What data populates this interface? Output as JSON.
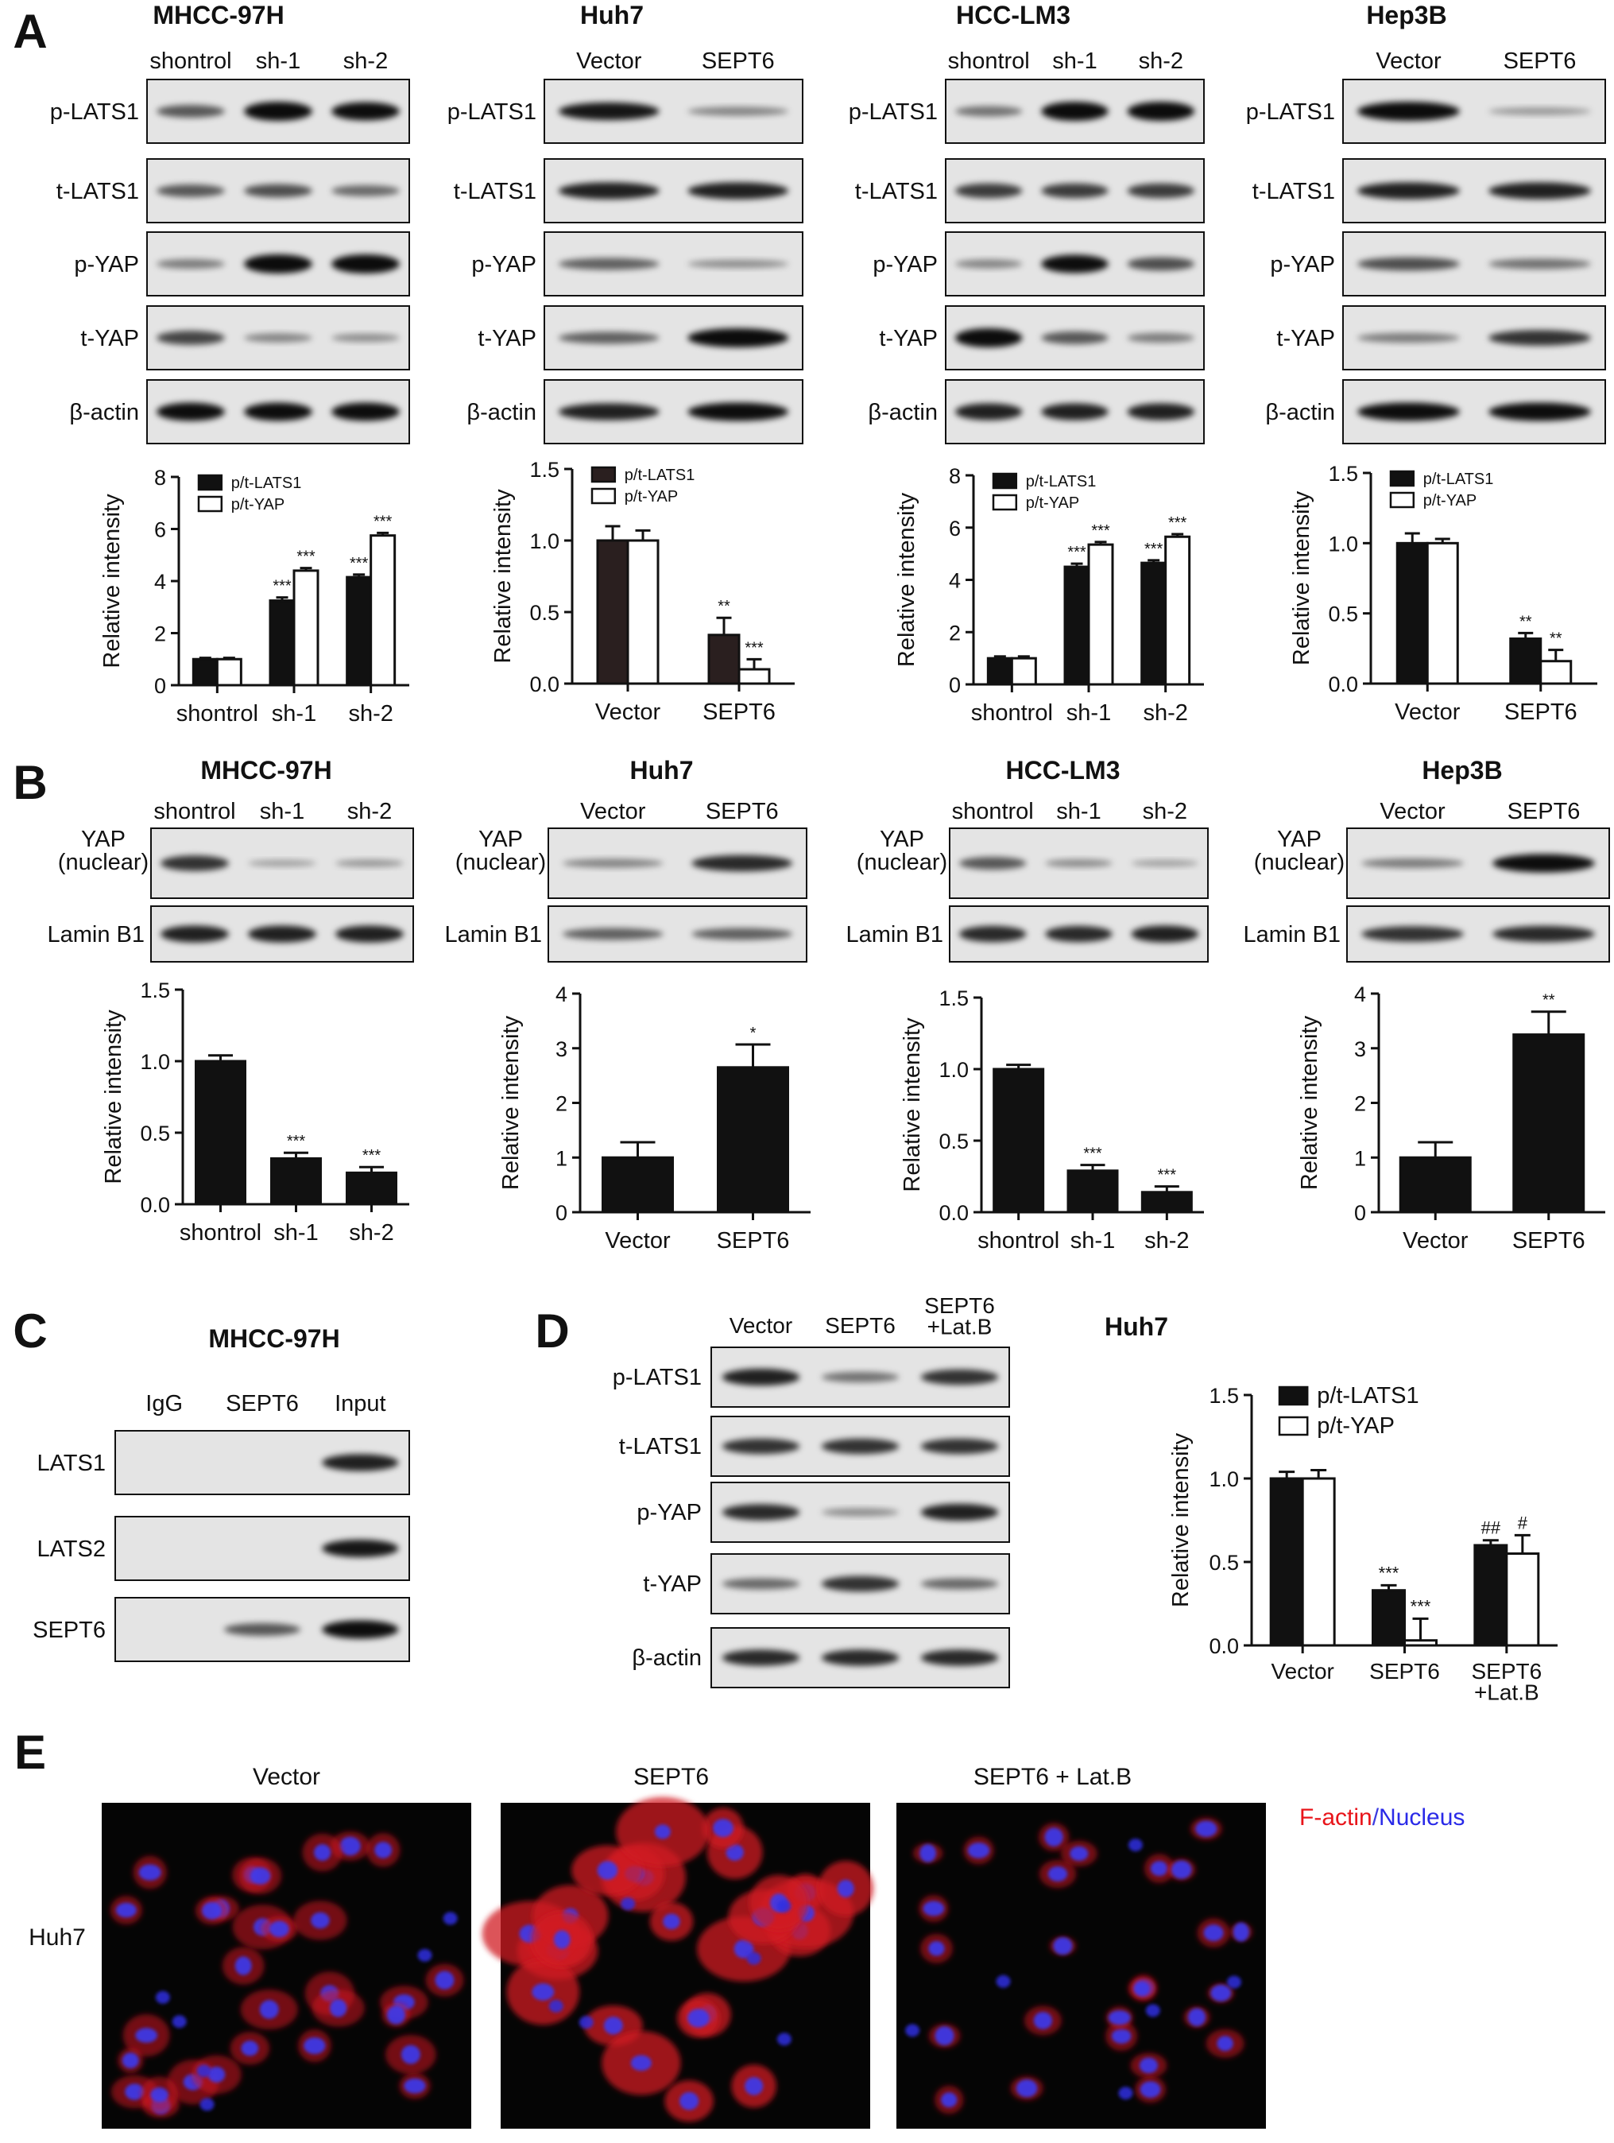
{
  "panel_letters": [
    "A",
    "B",
    "C",
    "D",
    "E"
  ],
  "panel_a": {
    "groups": [
      {
        "cell_line": "MHCC-97H",
        "lanes": [
          "shontrol",
          "sh-1",
          "sh-2"
        ],
        "rows": [
          "p-LATS1",
          "t-LATS1",
          "p-YAP",
          "t-YAP",
          "β-actin"
        ]
      },
      {
        "cell_line": "Huh7",
        "lanes": [
          "Vector",
          "SEPT6"
        ],
        "rows": [
          "p-LATS1",
          "t-LATS1",
          "p-YAP",
          "t-YAP",
          "β-actin"
        ]
      },
      {
        "cell_line": "HCC-LM3",
        "lanes": [
          "shontrol",
          "sh-1",
          "sh-2"
        ],
        "rows": [
          "p-LATS1",
          "t-LATS1",
          "p-YAP",
          "t-YAP",
          "β-actin"
        ]
      },
      {
        "cell_line": "Hep3B",
        "lanes": [
          "Vector",
          "SEPT6"
        ],
        "rows": [
          "p-LATS1",
          "t-LATS1",
          "p-YAP",
          "t-YAP",
          "β-actin"
        ]
      }
    ]
  },
  "panel_b": {
    "groups": [
      {
        "cell_line": "MHCC-97H",
        "lanes": [
          "shontrol",
          "sh-1",
          "sh-2"
        ],
        "rows": [
          "YAP\n(nuclear)",
          "Lamin B1"
        ]
      },
      {
        "cell_line": "Huh7",
        "lanes": [
          "Vector",
          "SEPT6"
        ],
        "rows": [
          "YAP\n(nuclear)",
          "Lamin B1"
        ]
      },
      {
        "cell_line": "HCC-LM3",
        "lanes": [
          "shontrol",
          "sh-1",
          "sh-2"
        ],
        "rows": [
          "YAP\n(nuclear)",
          "Lamin B1"
        ]
      },
      {
        "cell_line": "Hep3B",
        "lanes": [
          "Vector",
          "SEPT6"
        ],
        "rows": [
          "YAP\n(nuclear)",
          "Lamin B1"
        ]
      }
    ]
  },
  "panel_c": {
    "title": "MHCC-97H",
    "lanes": [
      "IgG",
      "SEPT6",
      "Input"
    ],
    "rows": [
      "LATS1",
      "LATS2",
      "SEPT6"
    ]
  },
  "panel_d": {
    "title": "Huh7",
    "lanes": [
      "Vector",
      "SEPT6",
      "SEPT6\n+Lat.B"
    ],
    "rows": [
      "p-LATS1",
      "t-LATS1",
      "p-YAP",
      "t-YAP",
      "β-actin"
    ]
  },
  "panel_e": {
    "row_label": "Huh7",
    "columns": [
      "Vector",
      "SEPT6",
      "SEPT6 + Lat.B"
    ],
    "legend": [
      {
        "text": "F-actin",
        "color": "#e8141a"
      },
      {
        "text": "/",
        "color": "#3a3ae0"
      },
      {
        "text": "Nucleus",
        "color": "#2a2ae8"
      }
    ]
  },
  "chart_data": [
    {
      "id": "A1",
      "type": "bar",
      "categories": [
        "shontrol",
        "sh-1",
        "sh-2"
      ],
      "ylabel": "Relative intensity",
      "ylim": [
        0,
        8
      ],
      "yticks": [
        0,
        2,
        4,
        6,
        8
      ],
      "legend": "top-left",
      "series": [
        {
          "name": "p/t-LATS1",
          "fill": "#111111",
          "values": [
            1.0,
            3.25,
            4.15
          ],
          "errors": [
            0.05,
            0.12,
            0.1
          ],
          "sig": [
            "",
            "***",
            "***"
          ]
        },
        {
          "name": "p/t-YAP",
          "fill": "#ffffff",
          "values": [
            1.0,
            4.4,
            5.75
          ],
          "errors": [
            0.05,
            0.1,
            0.1
          ],
          "sig": [
            "",
            "***",
            "***"
          ]
        }
      ]
    },
    {
      "id": "A2",
      "type": "bar",
      "categories": [
        "Vector",
        "SEPT6"
      ],
      "ylabel": "Relative intensity",
      "ylim": [
        0,
        1.5
      ],
      "yticks": [
        "0.0",
        "0.5",
        "1.0",
        "1.5"
      ],
      "legend": "top-left",
      "series": [
        {
          "name": "p/t-LATS1",
          "fill": "#2a1f1f",
          "values": [
            1.0,
            0.34
          ],
          "errors": [
            0.1,
            0.12
          ],
          "sig": [
            "",
            "**"
          ]
        },
        {
          "name": "p/t-YAP",
          "fill": "#ffffff",
          "values": [
            1.0,
            0.1
          ],
          "errors": [
            0.07,
            0.07
          ],
          "sig": [
            "",
            "***"
          ]
        }
      ]
    },
    {
      "id": "A3",
      "type": "bar",
      "categories": [
        "shontrol",
        "sh-1",
        "sh-2"
      ],
      "ylabel": "Relative intensity",
      "ylim": [
        0,
        8
      ],
      "yticks": [
        0,
        2,
        4,
        6,
        8
      ],
      "legend": "top-left",
      "series": [
        {
          "name": "p/t-LATS1",
          "fill": "#111111",
          "values": [
            1.0,
            4.5,
            4.65
          ],
          "errors": [
            0.07,
            0.12,
            0.1
          ],
          "sig": [
            "",
            "***",
            "***"
          ]
        },
        {
          "name": "p/t-YAP",
          "fill": "#ffffff",
          "values": [
            1.0,
            5.35,
            5.65
          ],
          "errors": [
            0.07,
            0.1,
            0.1
          ],
          "sig": [
            "",
            "***",
            "***"
          ]
        }
      ]
    },
    {
      "id": "A4",
      "type": "bar",
      "categories": [
        "Vector",
        "SEPT6"
      ],
      "ylabel": "Relative intensity",
      "ylim": [
        0,
        1.5
      ],
      "yticks": [
        "0.0",
        "0.5",
        "1.0",
        "1.5"
      ],
      "legend": "top-left",
      "series": [
        {
          "name": "p/t-LATS1",
          "fill": "#111111",
          "values": [
            1.0,
            0.32
          ],
          "errors": [
            0.07,
            0.04
          ],
          "sig": [
            "",
            "**"
          ]
        },
        {
          "name": "p/t-YAP",
          "fill": "#ffffff",
          "values": [
            1.0,
            0.16
          ],
          "errors": [
            0.03,
            0.08
          ],
          "sig": [
            "",
            "**"
          ]
        }
      ]
    },
    {
      "id": "B1",
      "type": "bar",
      "categories": [
        "shontrol",
        "sh-1",
        "sh-2"
      ],
      "ylabel": "Relative intensity",
      "ylim": [
        0,
        1.5
      ],
      "yticks": [
        "0.0",
        "0.5",
        "1.0",
        "1.5"
      ],
      "series": [
        {
          "fill": "#111111",
          "values": [
            1.0,
            0.32,
            0.22
          ],
          "errors": [
            0.04,
            0.04,
            0.04
          ],
          "sig": [
            "",
            "***",
            "***"
          ]
        }
      ]
    },
    {
      "id": "B2",
      "type": "bar",
      "categories": [
        "Vector",
        "SEPT6"
      ],
      "ylabel": "Relative intensity",
      "ylim": [
        0,
        4
      ],
      "yticks": [
        0,
        1,
        2,
        3,
        4
      ],
      "series": [
        {
          "fill": "#111111",
          "values": [
            1.0,
            2.65
          ],
          "errors": [
            0.28,
            0.42
          ],
          "sig": [
            "",
            "*"
          ]
        }
      ]
    },
    {
      "id": "B3",
      "type": "bar",
      "categories": [
        "shontrol",
        "sh-1",
        "sh-2"
      ],
      "ylabel": "Relative intensity",
      "ylim": [
        0,
        1.5
      ],
      "yticks": [
        "0.0",
        "0.5",
        "1.0",
        "1.5"
      ],
      "series": [
        {
          "fill": "#111111",
          "values": [
            1.0,
            0.29,
            0.14
          ],
          "errors": [
            0.03,
            0.04,
            0.04
          ],
          "sig": [
            "",
            "***",
            "***"
          ]
        }
      ]
    },
    {
      "id": "B4",
      "type": "bar",
      "categories": [
        "Vector",
        "SEPT6"
      ],
      "ylabel": "Relative intensity",
      "ylim": [
        0,
        4
      ],
      "yticks": [
        0,
        1,
        2,
        3,
        4
      ],
      "series": [
        {
          "fill": "#111111",
          "values": [
            1.0,
            3.25
          ],
          "errors": [
            0.28,
            0.42
          ],
          "sig": [
            "",
            "**"
          ]
        }
      ]
    },
    {
      "id": "D",
      "type": "bar",
      "categories": [
        "Vector",
        "SEPT6",
        "SEPT6\n+Lat.B"
      ],
      "ylabel": "Relative intensity",
      "ylim": [
        0,
        1.5
      ],
      "yticks": [
        "0.0",
        "0.5",
        "1.0",
        "1.5"
      ],
      "legend": "top-left",
      "series": [
        {
          "name": "p/t-LATS1",
          "fill": "#111111",
          "values": [
            1.0,
            0.33,
            0.6
          ],
          "errors": [
            0.04,
            0.03,
            0.03
          ],
          "sig": [
            "",
            "***",
            "##"
          ]
        },
        {
          "name": "p/t-YAP",
          "fill": "#ffffff",
          "values": [
            1.0,
            0.03,
            0.55
          ],
          "errors": [
            0.05,
            0.13,
            0.11
          ],
          "sig": [
            "",
            "***",
            "#"
          ]
        }
      ]
    }
  ]
}
